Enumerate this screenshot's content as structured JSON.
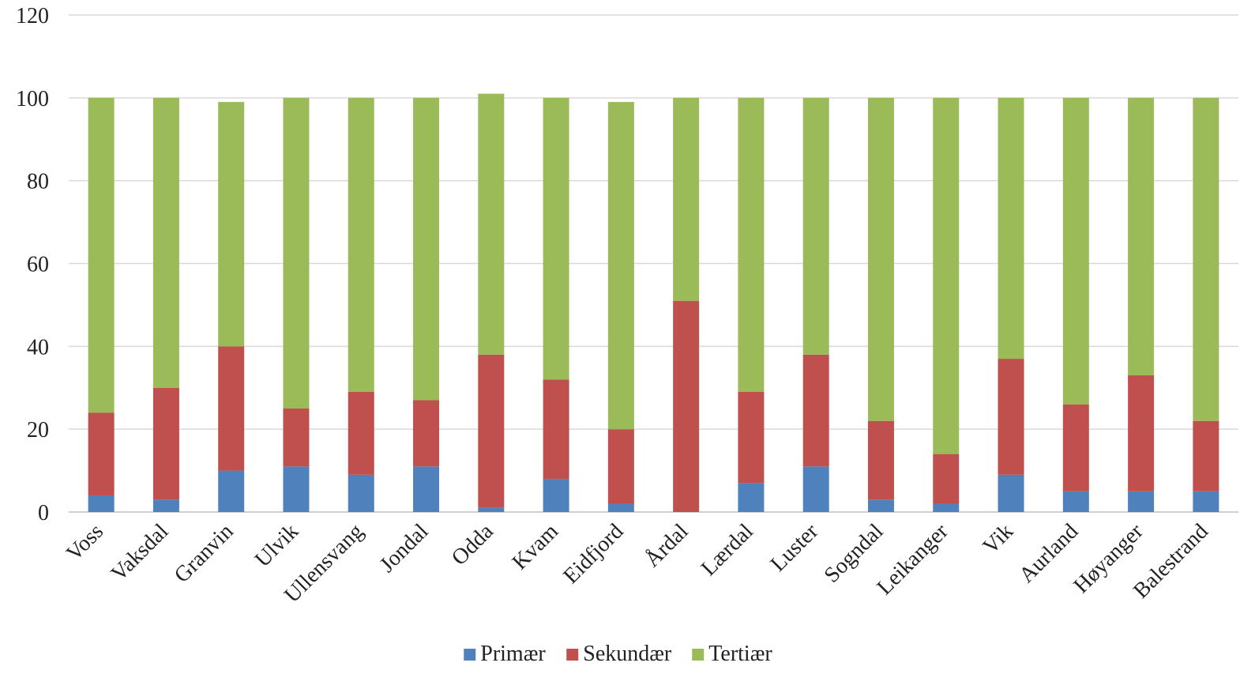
{
  "chart_data": {
    "type": "bar",
    "stacked": true,
    "title": "",
    "xlabel": "",
    "ylabel": "",
    "ylim": [
      0,
      120
    ],
    "yticks": [
      0,
      20,
      40,
      60,
      80,
      100,
      120
    ],
    "grid": true,
    "legend_position": "bottom",
    "categories": [
      "Voss",
      "Vaksdal",
      "Granvin",
      "Ulvik",
      "Ullensvang",
      "Jondal",
      "Odda",
      "Kvam",
      "Eidfjord",
      "Årdal",
      "Lærdal",
      "Luster",
      "Sogndal",
      "Leikanger",
      "Vik",
      "Aurland",
      "Høyanger",
      "Balestrand"
    ],
    "series": [
      {
        "name": "Primær",
        "color": "#4f81bd",
        "values": [
          4,
          3,
          10,
          11,
          9,
          11,
          1,
          8,
          2,
          0,
          7,
          11,
          3,
          2,
          9,
          5,
          5,
          5
        ]
      },
      {
        "name": "Sekundær",
        "color": "#c0504d",
        "values": [
          20,
          27,
          30,
          14,
          20,
          16,
          37,
          24,
          18,
          51,
          22,
          27,
          19,
          12,
          28,
          21,
          28,
          17
        ]
      },
      {
        "name": "Tertiær",
        "color": "#9bbb59",
        "values": [
          76,
          70,
          59,
          75,
          71,
          73,
          63,
          68,
          79,
          49,
          71,
          62,
          78,
          86,
          63,
          74,
          67,
          78
        ]
      }
    ]
  }
}
